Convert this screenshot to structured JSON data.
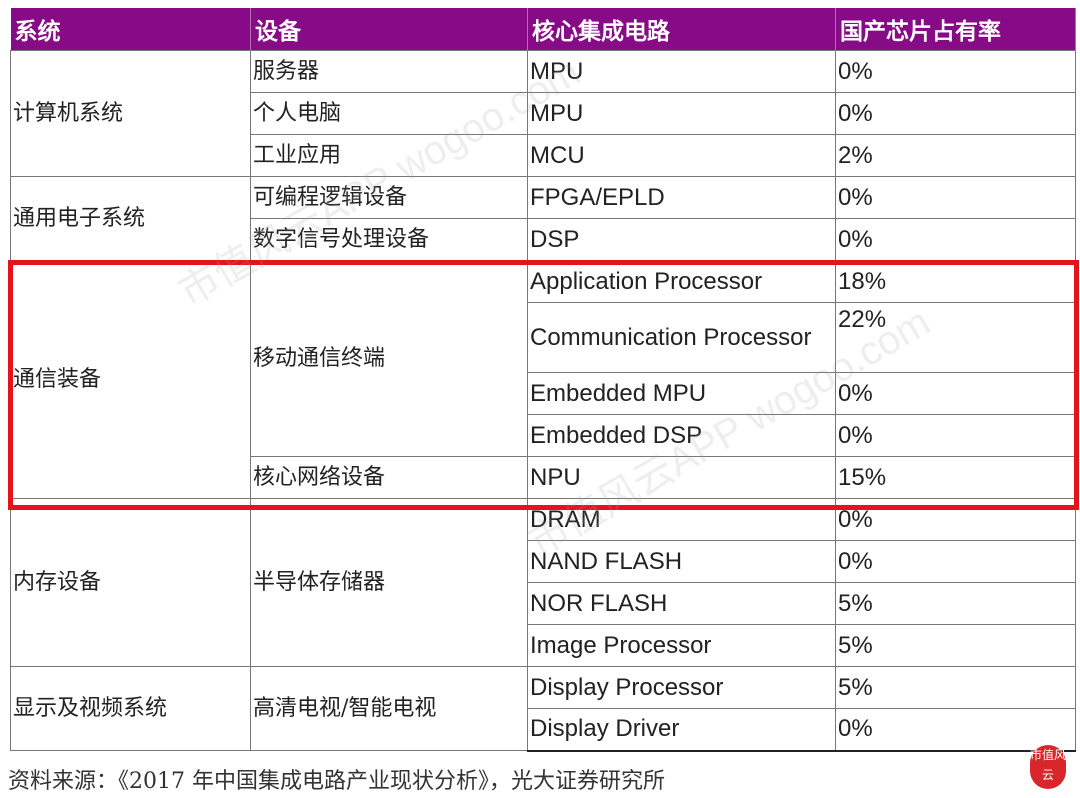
{
  "header": [
    "系统",
    "设备",
    "核心集成电路",
    "国产芯片占有率"
  ],
  "groups": [
    {
      "system": "计算机系统",
      "devices": [
        {
          "device": "服务器",
          "rows": [
            [
              "MPU",
              "0%"
            ]
          ]
        },
        {
          "device": "个人电脑",
          "rows": [
            [
              "MPU",
              "0%"
            ]
          ]
        },
        {
          "device": "工业应用",
          "rows": [
            [
              "MCU",
              "2%"
            ]
          ]
        }
      ]
    },
    {
      "system": "通用电子系统",
      "devices": [
        {
          "device": "可编程逻辑设备",
          "rows": [
            [
              "FPGA/EPLD",
              "0%"
            ]
          ]
        },
        {
          "device": "数字信号处理设备",
          "rows": [
            [
              "DSP",
              "0%"
            ]
          ]
        }
      ]
    },
    {
      "system": "通信装备",
      "devices": [
        {
          "device": "移动通信终端",
          "rows": [
            [
              "Application Processor",
              "18%"
            ],
            [
              "Communication Processor",
              "22%"
            ],
            [
              "Embedded MPU",
              "0%"
            ],
            [
              "Embedded DSP",
              "0%"
            ]
          ]
        },
        {
          "device": "核心网络设备",
          "rows": [
            [
              "NPU",
              "15%"
            ]
          ]
        }
      ]
    },
    {
      "system": "内存设备",
      "devices": [
        {
          "device": "半导体存储器",
          "rows": [
            [
              "DRAM",
              "0%"
            ],
            [
              "NAND FLASH",
              "0%"
            ],
            [
              "NOR FLASH",
              "5%"
            ],
            [
              "Image Processor",
              "5%"
            ]
          ]
        }
      ]
    },
    {
      "system": "显示及视频系统",
      "devices": [
        {
          "device": "高清电视/智能电视",
          "rows": [
            [
              "Display Processor",
              "5%"
            ],
            [
              "Display Driver",
              "0%"
            ]
          ]
        }
      ]
    }
  ],
  "source": "资料来源：《2017 年中国集成电路产业现状分析》，光大证券研究所",
  "watermark": "市值风云APP wogoo.com",
  "logo": "市值风云",
  "colors": {
    "header": "#870a87",
    "highlight": "#e3141b"
  }
}
